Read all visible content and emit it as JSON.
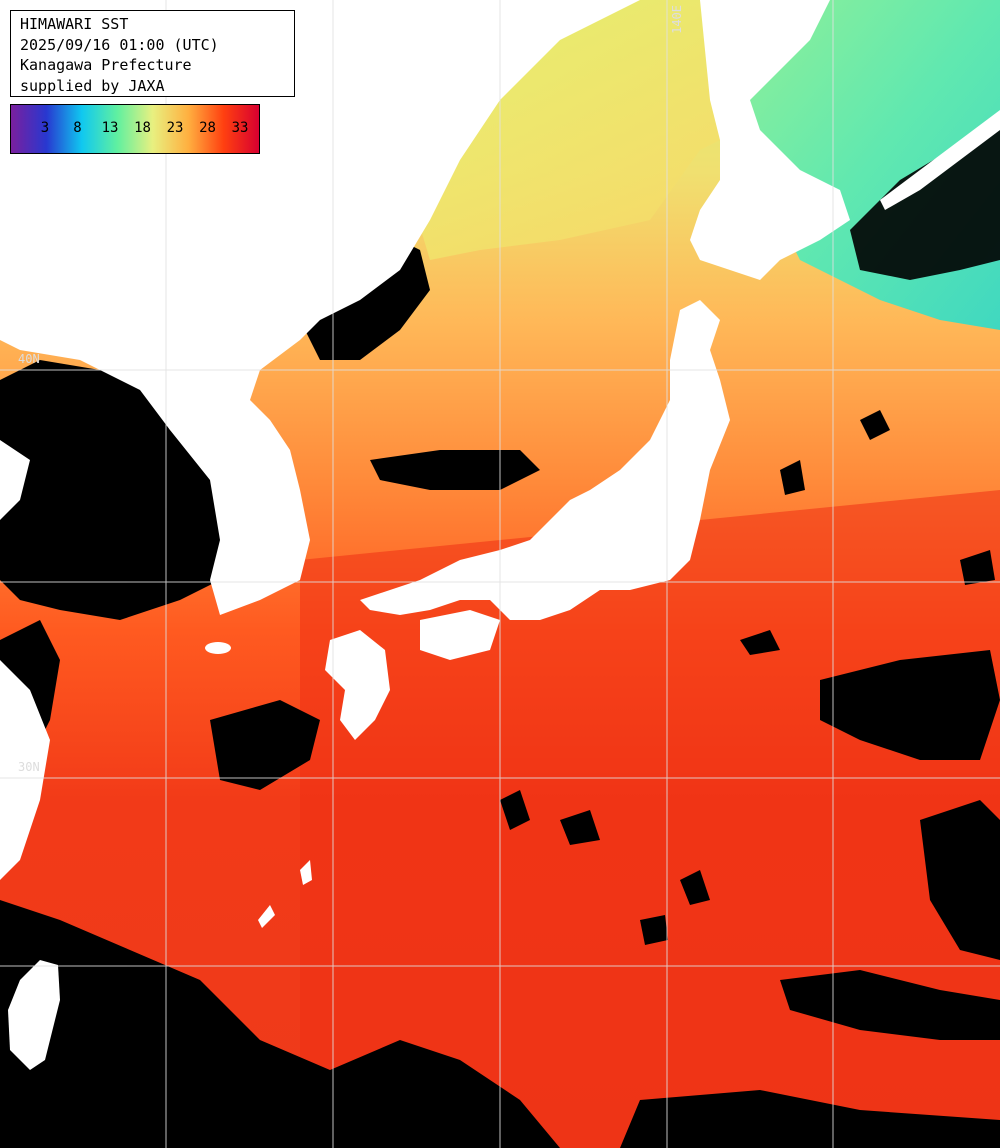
{
  "info": {
    "line1": "HIMAWARI SST",
    "line2": "2025/09/16 01:00 (UTC)",
    "line3": "Kanagawa Prefecture",
    "line4": "supplied by JAXA"
  },
  "scale": {
    "labels": [
      "3",
      "8",
      "13",
      "18",
      "23",
      "28",
      "33"
    ],
    "colors": [
      "#7a1f9e",
      "#2838d0",
      "#10c8f0",
      "#60f0a0",
      "#e8f080",
      "#ffb040",
      "#ff4010",
      "#d80030"
    ]
  },
  "grid_labels": {
    "lon_140": "140E",
    "lat_40": "40N",
    "lat_30": "30N"
  },
  "colors": {
    "land": "#ffffff",
    "cloud": "#000000",
    "grid": "#e0e0e0"
  }
}
